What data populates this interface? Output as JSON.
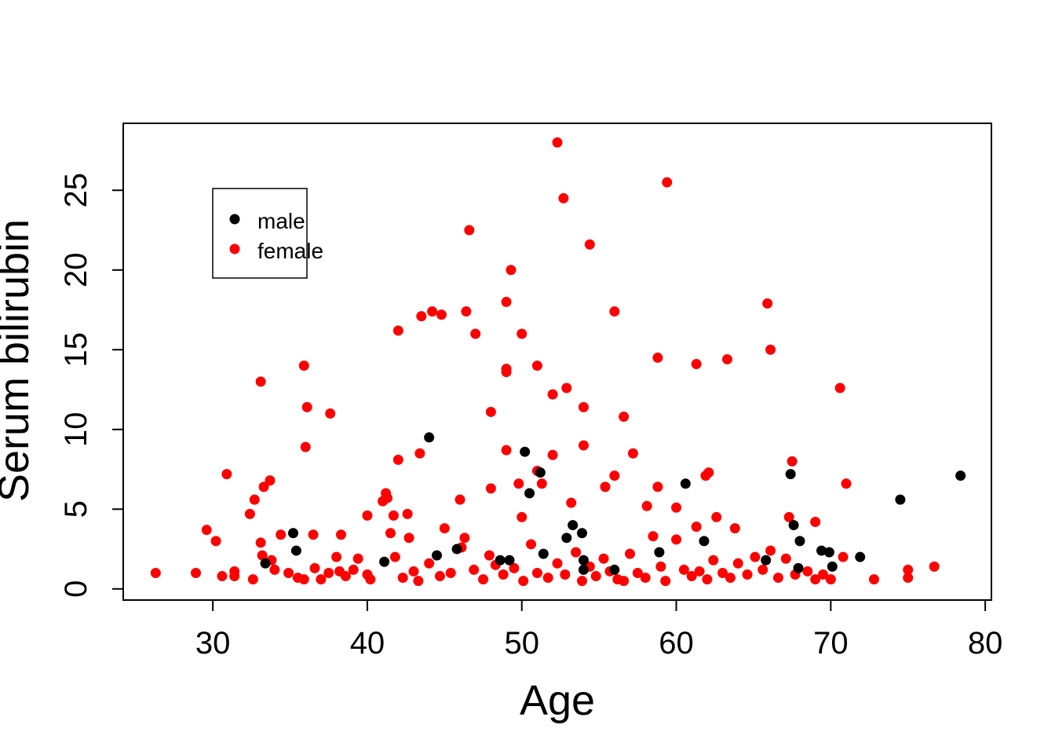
{
  "chart_data": {
    "type": "scatter",
    "xlabel": "Age",
    "ylabel": "Serum bilirubin",
    "xlim": [
      24.2,
      80.4
    ],
    "ylim": [
      -0.7,
      29.2
    ],
    "x_ticks": [
      30,
      40,
      50,
      60,
      70,
      80
    ],
    "y_ticks": [
      0,
      5,
      10,
      15,
      20,
      25
    ],
    "grid": false,
    "legend_position": "top-left",
    "series": [
      {
        "name": "male",
        "color": "#000000",
        "points": [
          [
            33.4,
            1.6
          ],
          [
            35.2,
            3.5
          ],
          [
            35.4,
            2.4
          ],
          [
            41.1,
            1.7
          ],
          [
            44.0,
            9.5
          ],
          [
            44.5,
            2.1
          ],
          [
            45.8,
            2.5
          ],
          [
            48.6,
            1.8
          ],
          [
            49.2,
            1.8
          ],
          [
            50.2,
            8.6
          ],
          [
            50.5,
            6.0
          ],
          [
            51.2,
            7.3
          ],
          [
            51.4,
            2.2
          ],
          [
            52.9,
            3.2
          ],
          [
            53.3,
            4.0
          ],
          [
            53.9,
            3.5
          ],
          [
            54.0,
            1.8
          ],
          [
            54.0,
            1.2
          ],
          [
            56.0,
            1.2
          ],
          [
            58.9,
            2.3
          ],
          [
            60.6,
            6.6
          ],
          [
            61.8,
            3.0
          ],
          [
            65.8,
            1.8
          ],
          [
            67.4,
            7.2
          ],
          [
            67.6,
            4.0
          ],
          [
            67.9,
            1.3
          ],
          [
            68.0,
            3.0
          ],
          [
            69.4,
            2.4
          ],
          [
            69.9,
            2.3
          ],
          [
            70.1,
            1.4
          ],
          [
            71.9,
            2.0
          ],
          [
            74.5,
            5.6
          ],
          [
            78.4,
            7.1
          ]
        ]
      },
      {
        "name": "female",
        "color": "#ff0000",
        "points": [
          [
            52.3,
            28.0
          ],
          [
            52.7,
            24.5
          ],
          [
            59.4,
            25.5
          ],
          [
            46.6,
            22.5
          ],
          [
            54.4,
            21.6
          ],
          [
            49.3,
            20.0
          ],
          [
            49.0,
            18.0
          ],
          [
            44.2,
            17.4
          ],
          [
            43.5,
            17.1
          ],
          [
            44.8,
            17.2
          ],
          [
            46.4,
            17.4
          ],
          [
            56.0,
            17.4
          ],
          [
            65.9,
            17.9
          ],
          [
            42.0,
            16.2
          ],
          [
            47.0,
            16.0
          ],
          [
            50.0,
            16.0
          ],
          [
            66.1,
            15.0
          ],
          [
            58.8,
            14.5
          ],
          [
            61.3,
            14.1
          ],
          [
            63.3,
            14.4
          ],
          [
            35.9,
            14.0
          ],
          [
            49.0,
            13.6
          ],
          [
            49.0,
            13.8
          ],
          [
            51.0,
            14.0
          ],
          [
            33.1,
            13.0
          ],
          [
            52.9,
            12.6
          ],
          [
            52.0,
            12.2
          ],
          [
            70.6,
            12.6
          ],
          [
            36.1,
            11.4
          ],
          [
            37.6,
            11.0
          ],
          [
            48.0,
            11.1
          ],
          [
            54.0,
            11.4
          ],
          [
            56.6,
            10.8
          ],
          [
            36.0,
            8.9
          ],
          [
            42.0,
            8.1
          ],
          [
            43.4,
            8.5
          ],
          [
            49.0,
            8.7
          ],
          [
            52.0,
            8.4
          ],
          [
            54.0,
            9.0
          ],
          [
            57.2,
            8.5
          ],
          [
            67.5,
            8.0
          ],
          [
            30.9,
            7.2
          ],
          [
            33.3,
            6.4
          ],
          [
            33.7,
            6.8
          ],
          [
            41.2,
            6.0
          ],
          [
            41.3,
            5.7
          ],
          [
            41.0,
            5.5
          ],
          [
            46.0,
            5.6
          ],
          [
            48.0,
            6.3
          ],
          [
            49.8,
            6.6
          ],
          [
            51.0,
            7.4
          ],
          [
            51.3,
            6.6
          ],
          [
            55.4,
            6.4
          ],
          [
            56.0,
            7.1
          ],
          [
            58.8,
            6.4
          ],
          [
            61.9,
            7.1
          ],
          [
            62.1,
            7.3
          ],
          [
            71.0,
            6.6
          ],
          [
            32.7,
            5.6
          ],
          [
            32.4,
            4.7
          ],
          [
            29.6,
            3.7
          ],
          [
            30.2,
            3.0
          ],
          [
            33.1,
            2.9
          ],
          [
            34.4,
            3.4
          ],
          [
            36.5,
            3.4
          ],
          [
            38.3,
            3.4
          ],
          [
            40.0,
            4.6
          ],
          [
            41.7,
            4.6
          ],
          [
            42.6,
            4.7
          ],
          [
            45.0,
            3.8
          ],
          [
            46.3,
            3.2
          ],
          [
            50.0,
            4.5
          ],
          [
            53.2,
            5.4
          ],
          [
            58.1,
            5.2
          ],
          [
            60.0,
            5.1
          ],
          [
            61.3,
            3.9
          ],
          [
            62.6,
            4.5
          ],
          [
            63.8,
            3.8
          ],
          [
            67.3,
            4.5
          ],
          [
            69.0,
            4.2
          ],
          [
            70.8,
            2.0
          ],
          [
            76.7,
            1.4
          ],
          [
            75.0,
            1.2
          ],
          [
            75.0,
            0.7
          ],
          [
            72.8,
            0.6
          ],
          [
            26.3,
            1.0
          ],
          [
            28.9,
            1.0
          ],
          [
            30.6,
            0.8
          ],
          [
            31.4,
            1.1
          ],
          [
            31.4,
            0.8
          ],
          [
            32.6,
            0.6
          ],
          [
            33.2,
            2.1
          ],
          [
            33.8,
            1.8
          ],
          [
            34.0,
            1.2
          ],
          [
            34.9,
            1.0
          ],
          [
            35.5,
            0.7
          ],
          [
            35.9,
            0.6
          ],
          [
            36.6,
            1.3
          ],
          [
            37.0,
            0.6
          ],
          [
            37.5,
            1.0
          ],
          [
            38.0,
            2.0
          ],
          [
            38.2,
            1.1
          ],
          [
            38.6,
            0.8
          ],
          [
            39.1,
            1.2
          ],
          [
            39.4,
            1.9
          ],
          [
            40.0,
            0.9
          ],
          [
            40.2,
            0.6
          ],
          [
            41.5,
            3.5
          ],
          [
            41.8,
            2.0
          ],
          [
            42.3,
            0.7
          ],
          [
            42.7,
            3.2
          ],
          [
            43.0,
            1.1
          ],
          [
            43.3,
            0.5
          ],
          [
            44.0,
            1.6
          ],
          [
            44.7,
            0.8
          ],
          [
            45.4,
            1.0
          ],
          [
            46.1,
            2.6
          ],
          [
            46.9,
            1.2
          ],
          [
            47.5,
            0.6
          ],
          [
            47.9,
            2.1
          ],
          [
            48.3,
            1.5
          ],
          [
            48.8,
            0.9
          ],
          [
            49.5,
            1.3
          ],
          [
            50.1,
            0.5
          ],
          [
            50.6,
            2.8
          ],
          [
            51.0,
            1.0
          ],
          [
            51.7,
            0.7
          ],
          [
            52.3,
            1.6
          ],
          [
            52.8,
            0.9
          ],
          [
            53.5,
            2.3
          ],
          [
            53.9,
            0.5
          ],
          [
            54.4,
            1.4
          ],
          [
            54.8,
            0.8
          ],
          [
            55.3,
            1.9
          ],
          [
            55.7,
            1.1
          ],
          [
            56.2,
            0.6
          ],
          [
            56.6,
            0.5
          ],
          [
            57.0,
            2.2
          ],
          [
            57.5,
            1.0
          ],
          [
            58.0,
            0.7
          ],
          [
            58.5,
            3.3
          ],
          [
            59.0,
            1.4
          ],
          [
            59.3,
            0.5
          ],
          [
            60.0,
            3.1
          ],
          [
            60.5,
            1.2
          ],
          [
            61.0,
            0.8
          ],
          [
            61.5,
            1.1
          ],
          [
            62.0,
            0.6
          ],
          [
            62.4,
            1.8
          ],
          [
            63.0,
            1.0
          ],
          [
            63.5,
            0.7
          ],
          [
            64.0,
            1.6
          ],
          [
            64.6,
            0.9
          ],
          [
            65.1,
            2.0
          ],
          [
            65.6,
            1.2
          ],
          [
            66.1,
            2.4
          ],
          [
            66.6,
            0.7
          ],
          [
            67.1,
            1.9
          ],
          [
            67.7,
            0.9
          ],
          [
            68.5,
            1.1
          ],
          [
            69.0,
            0.6
          ],
          [
            69.5,
            0.9
          ],
          [
            70.0,
            0.6
          ]
        ]
      }
    ]
  }
}
